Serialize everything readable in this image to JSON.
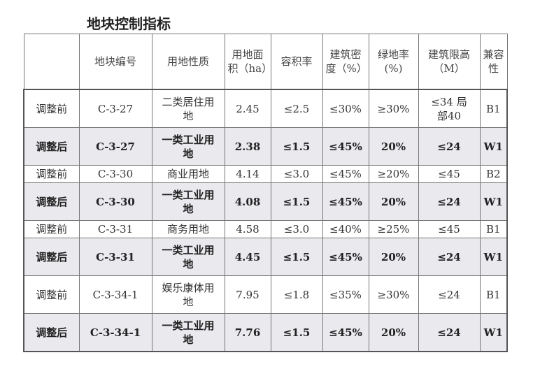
{
  "title": "地块控制指标",
  "headers": [
    "",
    "地块编号",
    "用地性质",
    "用地面积（ha）",
    "容积率",
    "建筑密度（%）",
    "绿地率(%)",
    "建筑限高（M）",
    "兼容性"
  ],
  "rows": [
    [
      "调整前",
      "C-3-27",
      "二类居住用地",
      "2.45",
      "≤2.5",
      "≤30%",
      "≥30%",
      "≤34 局部40",
      "B1"
    ],
    [
      "调整后",
      "C-3-27",
      "一类工业用地",
      "2.38",
      "≤1.5",
      "≤45%",
      "20%",
      "≤24",
      "W1"
    ],
    [
      "调整前",
      "C-3-30",
      "商业用地",
      "4.14",
      "≤3.0",
      "≤45%",
      "≥20%",
      "≤45",
      "B2"
    ],
    [
      "调整后",
      "C-3-30",
      "一类工业用地",
      "4.08",
      "≤1.5",
      "≤45%",
      "20%",
      "≤24",
      "W1"
    ],
    [
      "调整前",
      "C-3-31",
      "商务用地",
      "4.58",
      "≤3.0",
      "≤40%",
      "≥25%",
      "≤45",
      "B1"
    ],
    [
      "调整后",
      "C-3-31",
      "一类工业用地",
      "4.45",
      "≤1.5",
      "≤45%",
      "20%",
      "≤24",
      "W1"
    ],
    [
      "调整前",
      "C-3-34-1",
      "娱乐康体用地",
      "7.95",
      "≤1.8",
      "≤35%",
      "≥30%",
      "≤24",
      "B1"
    ],
    [
      "调整后",
      "C-3-34-1",
      "一类工业用地",
      "7.76",
      "≤1.5",
      "≤45%",
      "20%",
      "≤24",
      "W1"
    ]
  ]
}
